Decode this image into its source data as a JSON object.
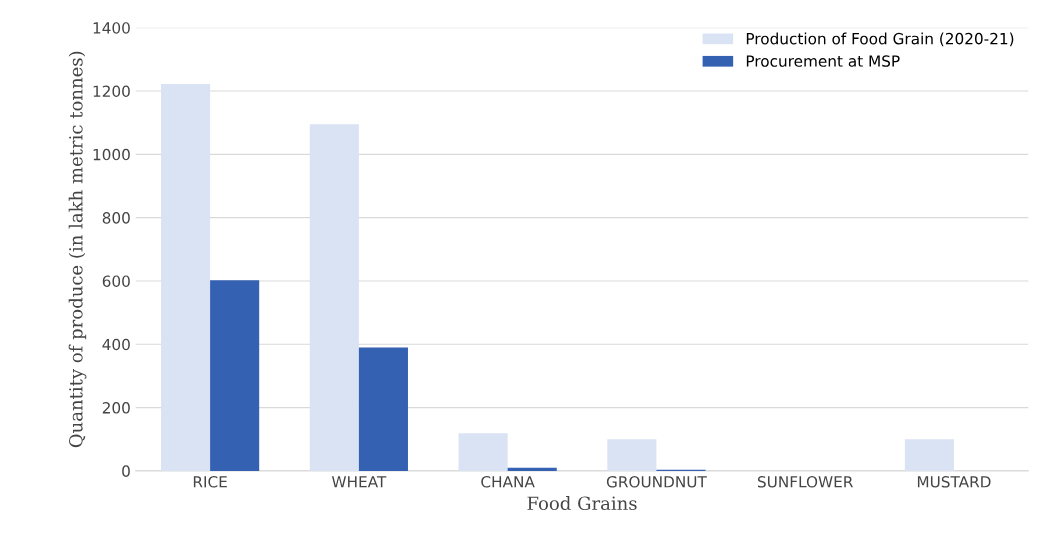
{
  "chart_data": {
    "type": "bar",
    "xlabel": "Food Grains",
    "ylabel": "Quantity of produce (in lakh metric tonnes)",
    "categories": [
      "RICE",
      "WHEAT",
      "CHANA",
      "GROUNDNUT",
      "SUNFLOWER",
      "MUSTARD"
    ],
    "series": [
      {
        "name": "Production of Food Grain (2020-21)",
        "color": "#dae3f3",
        "values": [
          1222,
          1095,
          119,
          100,
          0,
          100
        ]
      },
      {
        "name": "Procurement at MSP",
        "color": "#3461b2",
        "values": [
          602,
          390,
          10,
          4,
          0,
          0
        ]
      }
    ],
    "ylim": [
      0,
      1400
    ],
    "yticks": [
      0,
      200,
      400,
      600,
      800,
      1000,
      1200,
      1400
    ],
    "grid": "y",
    "legend": "top right"
  }
}
